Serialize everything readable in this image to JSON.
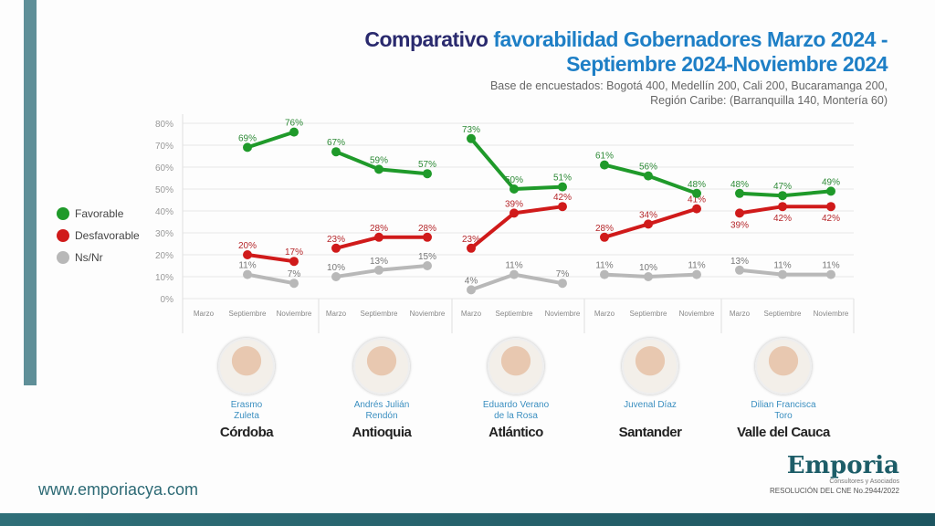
{
  "title": {
    "part1": "Comparativo ",
    "part2": "favorabilidad Gobernadores Marzo 2024 -",
    "line2": "Septiembre 2024-Noviembre 2024"
  },
  "subtitle": {
    "line1": "Base de encuestados: Bogotá 400, Medellín 200, Cali 200, Bucaramanga 200,",
    "line2": "Región Caribe: (Barranquilla 140, Montería 60)"
  },
  "colors": {
    "favorable": "#1f9a2a",
    "desfavorable": "#d01a1a",
    "nsnr": "#b8b8b8",
    "accent": "#1e7fc6"
  },
  "chart_data": {
    "type": "line",
    "ylim": [
      0,
      80
    ],
    "yticks": [
      "0%",
      "10%",
      "20%",
      "30%",
      "40%",
      "50%",
      "60%",
      "70%",
      "80%"
    ],
    "categories": [
      "Marzo",
      "Septiembre",
      "Noviembre"
    ],
    "legend": [
      "Favorable",
      "Desfavorable",
      "Ns/Nr"
    ],
    "legend_position": "left",
    "panels": [
      {
        "region": "Córdoba",
        "candidate": [
          "Erasmo",
          "Zuleta"
        ],
        "series": {
          "favorable": [
            null,
            69,
            76
          ],
          "desfavorable": [
            null,
            20,
            17
          ],
          "nsnr": [
            null,
            11,
            7
          ]
        }
      },
      {
        "region": "Antioquia",
        "candidate": [
          "Andrés Julián",
          "Rendón"
        ],
        "series": {
          "favorable": [
            67,
            59,
            57
          ],
          "desfavorable": [
            23,
            28,
            28
          ],
          "nsnr": [
            10,
            13,
            15
          ]
        }
      },
      {
        "region": "Atlántico",
        "candidate": [
          "Eduardo Verano",
          "de la Rosa"
        ],
        "series": {
          "favorable": [
            73,
            50,
            51
          ],
          "desfavorable": [
            23,
            39,
            42
          ],
          "nsnr": [
            4,
            11,
            7
          ]
        }
      },
      {
        "region": "Santander",
        "candidate": [
          "Juvenal Díaz",
          ""
        ],
        "series": {
          "favorable": [
            61,
            56,
            48
          ],
          "desfavorable": [
            28,
            34,
            41
          ],
          "nsnr": [
            11,
            10,
            11
          ]
        }
      },
      {
        "region": "Valle del Cauca",
        "candidate": [
          "Dilian Francisca",
          "Toro"
        ],
        "series": {
          "favorable": [
            48,
            47,
            49
          ],
          "desfavorable": [
            39,
            42,
            42
          ],
          "nsnr": [
            13,
            11,
            11
          ]
        }
      }
    ]
  },
  "footer": {
    "url": "www.emporiacya.com",
    "brand": "Emporia",
    "brand_sub": "Consultores y Asociados",
    "resolution": "RESOLUCIÓN DEL CNE No.2944/2022"
  }
}
